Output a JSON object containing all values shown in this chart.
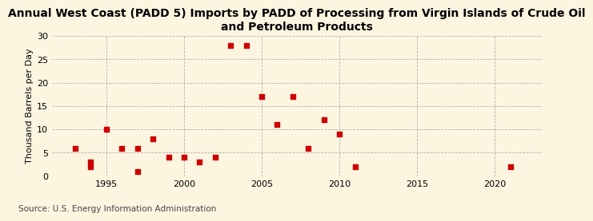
{
  "title": "Annual West Coast (PADD 5) Imports by PADD of Processing from Virgin Islands of Crude Oil\nand Petroleum Products",
  "ylabel": "Thousand Barrels per Day",
  "source": "Source: U.S. Energy Information Administration",
  "background_color": "#fdf5e0",
  "plot_bg_color": "#fdf5e0",
  "marker_color": "#cc0000",
  "years": [
    1993,
    1994,
    1994,
    1995,
    1996,
    1997,
    1997,
    1998,
    1999,
    2000,
    2001,
    2002,
    2003,
    2004,
    2005,
    2006,
    2007,
    2008,
    2009,
    2010,
    2011,
    2021
  ],
  "values": [
    6,
    3,
    2,
    10,
    6,
    6,
    1,
    8,
    4,
    4,
    3,
    4,
    28,
    28,
    17,
    11,
    17,
    6,
    12,
    9,
    2,
    2
  ],
  "xlim": [
    1991.5,
    2023
  ],
  "ylim": [
    0,
    30
  ],
  "yticks": [
    0,
    5,
    10,
    15,
    20,
    25,
    30
  ],
  "xticks": [
    1995,
    2000,
    2005,
    2010,
    2015,
    2020
  ],
  "title_fontsize": 10,
  "label_fontsize": 8,
  "tick_fontsize": 8,
  "source_fontsize": 7.5
}
